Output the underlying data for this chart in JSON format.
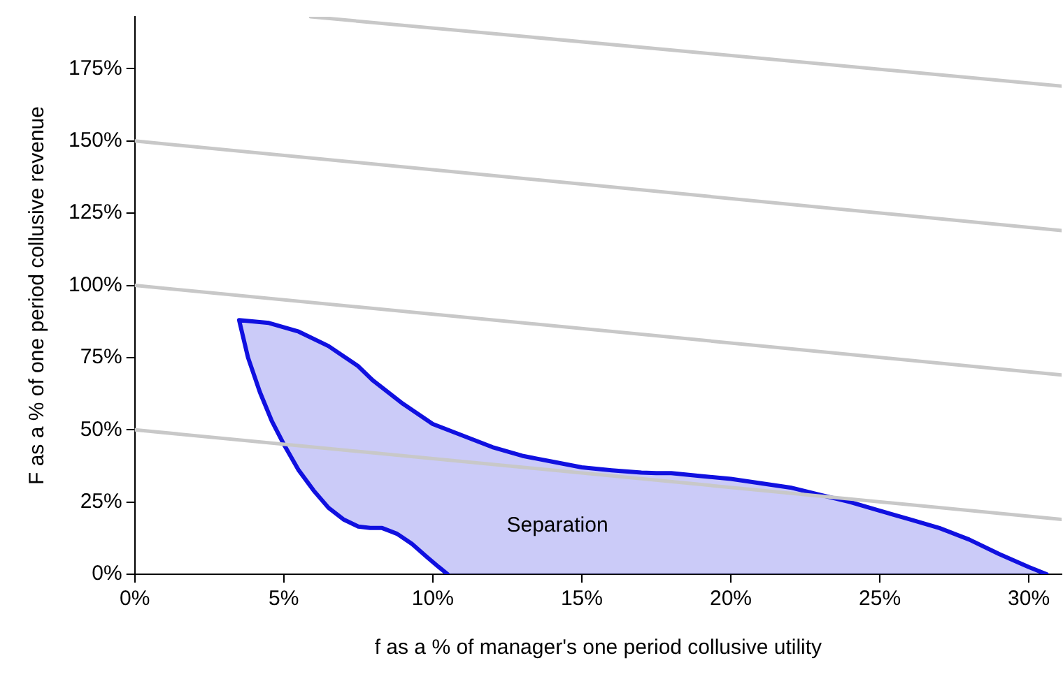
{
  "chart_data": {
    "type": "line",
    "xlabel": "f as a % of manager's one period collusive utility",
    "ylabel": "F as a % of one period collusive revenue",
    "xlim": [
      0,
      31.1
    ],
    "ylim": [
      0,
      193
    ],
    "xticks": [
      {
        "value": 0,
        "label": "0%"
      },
      {
        "value": 5,
        "label": "5%"
      },
      {
        "value": 10,
        "label": "10%"
      },
      {
        "value": 15,
        "label": "15%"
      },
      {
        "value": 20,
        "label": "20%"
      },
      {
        "value": 25,
        "label": "25%"
      },
      {
        "value": 30,
        "label": "30%"
      }
    ],
    "yticks": [
      {
        "value": 0,
        "label": "0%"
      },
      {
        "value": 25,
        "label": "25%"
      },
      {
        "value": 50,
        "label": "50%"
      },
      {
        "value": 75,
        "label": "75%"
      },
      {
        "value": 100,
        "label": "100%"
      },
      {
        "value": 125,
        "label": "125%"
      },
      {
        "value": 150,
        "label": "150%"
      },
      {
        "value": 175,
        "label": "175%"
      }
    ],
    "grid": false,
    "legend": false,
    "marker": "none",
    "line_style": "solid",
    "series": [
      {
        "color": "#c8c8c8",
        "x": [
          0,
          31.1
        ],
        "values": [
          50,
          19
        ]
      },
      {
        "color": "#c8c8c8",
        "x": [
          0,
          31.1
        ],
        "values": [
          100,
          69
        ]
      },
      {
        "color": "#c8c8c8",
        "x": [
          0,
          31.1
        ],
        "values": [
          150,
          119
        ]
      },
      {
        "color": "#c8c8c8",
        "x": [
          5.9,
          31.1
        ],
        "values": [
          193,
          169
        ]
      },
      {
        "type": "area",
        "color": "#1010e0",
        "x": [
          10.5,
          10.2,
          9.8,
          9.3,
          8.8,
          8.3,
          7.9,
          7.5,
          7,
          6.5,
          6,
          5.5,
          5,
          4.6,
          4.2,
          3.8,
          3.5,
          4.5,
          5.5,
          6.5,
          7.5,
          7.9,
          8,
          9,
          10,
          11,
          12,
          13,
          14,
          15,
          16,
          17,
          17.5,
          18,
          19,
          20,
          21,
          22,
          23,
          24,
          25,
          26,
          27,
          28,
          29,
          30,
          30.6
        ],
        "values": [
          0,
          2.5,
          6,
          10.5,
          14,
          16,
          16,
          16.5,
          19,
          23,
          29,
          36,
          45,
          53,
          63,
          75,
          88,
          87,
          84,
          79,
          72,
          68,
          67,
          59,
          52,
          48,
          44,
          41,
          39,
          37,
          36,
          35.2,
          35,
          35,
          34,
          33,
          31.5,
          30,
          27.5,
          25,
          22,
          19,
          16,
          12,
          7,
          2.5,
          0
        ]
      }
    ],
    "annotations": [
      "Separation"
    ]
  }
}
